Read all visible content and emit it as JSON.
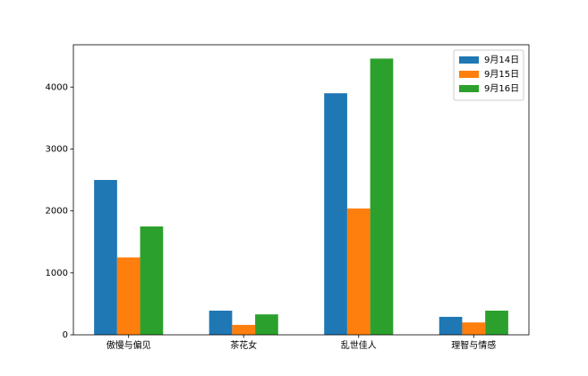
{
  "chart_data": {
    "type": "bar",
    "categories": [
      "傲慢与偏见",
      "茶花女",
      "乱世佳人",
      "理智与情感"
    ],
    "series": [
      {
        "name": "9月14日",
        "color": "#1f77b4",
        "values": [
          2500,
          390,
          3900,
          290
        ]
      },
      {
        "name": "9月15日",
        "color": "#ff7f0e",
        "values": [
          1250,
          160,
          2040,
          200
        ]
      },
      {
        "name": "9月16日",
        "color": "#2ca02c",
        "values": [
          1750,
          330,
          4460,
          390
        ]
      }
    ],
    "ylim": [
      0,
      4683
    ],
    "yticks": [
      0,
      1000,
      2000,
      3000,
      4000
    ],
    "legend": "upper right"
  }
}
